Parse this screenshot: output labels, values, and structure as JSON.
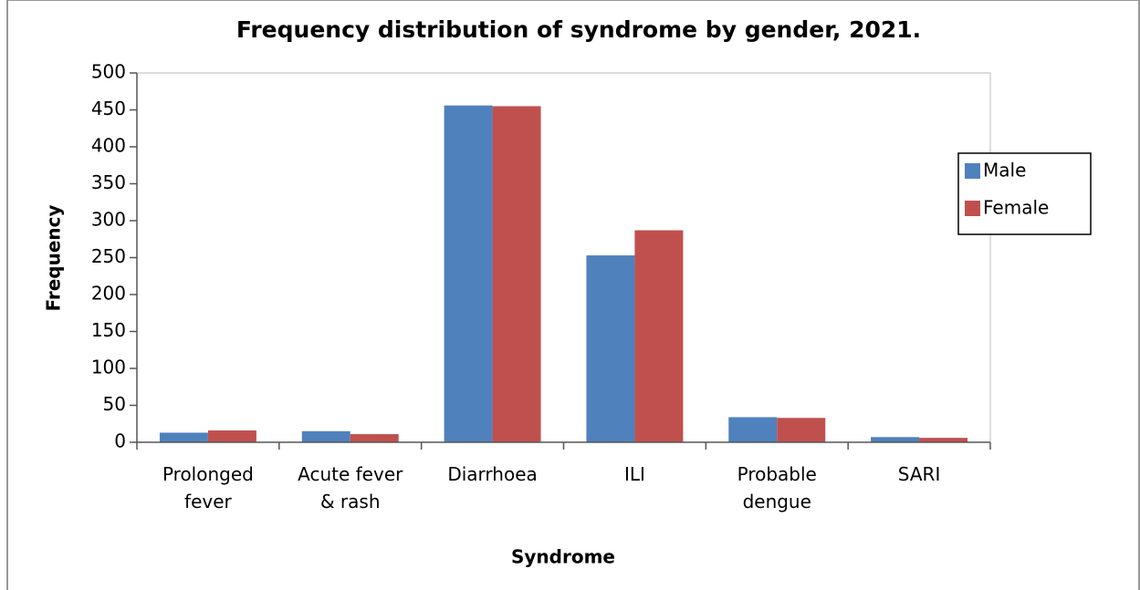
{
  "chart_data": {
    "type": "bar",
    "title": "Frequency distribution of syndrome by gender, 2021.",
    "x_label": "Syndrome",
    "y_label": "Frequency",
    "categories": [
      "Prolonged\nfever",
      "Acute fever\n& rash",
      "Diarrhoea",
      "ILI",
      "Probable\ndengue",
      "SARI"
    ],
    "series": [
      {
        "name": "Male",
        "color": "#4f81bd",
        "values": [
          13,
          15,
          456,
          253,
          34,
          7
        ]
      },
      {
        "name": "Female",
        "color": "#c0504d",
        "values": [
          16,
          11,
          455,
          287,
          33,
          6
        ]
      }
    ],
    "ylim": [
      0,
      500
    ],
    "yticks": [
      0,
      50,
      100,
      150,
      200,
      250,
      300,
      350,
      400,
      450,
      500
    ],
    "grid": false,
    "legend": "right"
  }
}
